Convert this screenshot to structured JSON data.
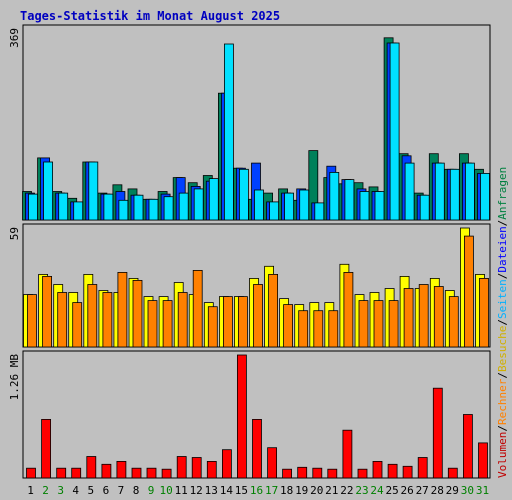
{
  "chart_data": {
    "type": "bar",
    "title": "Tages-Statistik im Monat August 2025",
    "categories": [
      "1",
      "2",
      "3",
      "4",
      "5",
      "6",
      "7",
      "8",
      "9",
      "10",
      "11",
      "12",
      "13",
      "14",
      "15",
      "16",
      "17",
      "18",
      "19",
      "20",
      "21",
      "22",
      "23",
      "24",
      "25",
      "26",
      "27",
      "28",
      "29",
      "30",
      "31"
    ],
    "weekend_days": [
      "2",
      "3",
      "9",
      "10",
      "16",
      "17",
      "23",
      "24",
      "30",
      "31"
    ],
    "panels": [
      {
        "id": "top",
        "ymax_label": "369",
        "ymax": 369,
        "series": [
          {
            "name": "Anfragen",
            "color": "#00805a",
            "values": [
              55,
              120,
              55,
              42,
              112,
              52,
              68,
              60,
              40,
              55,
              82,
              72,
              86,
              245,
              100,
              40,
              52,
              60,
              38,
              134,
              82,
              70,
              72,
              64,
              352,
              128,
              52,
              128,
              98,
              128,
              98
            ]
          },
          {
            "name": "Dateien",
            "color": "#0040ff",
            "values": [
              52,
              120,
              52,
              35,
              112,
              50,
              55,
              48,
              40,
              50,
              82,
              65,
              75,
              245,
              100,
              110,
              35,
              52,
              60,
              33,
              104,
              78,
              60,
              55,
              342,
              124,
              48,
              110,
              98,
              110,
              90
            ]
          },
          {
            "name": "Seiten",
            "color": "#00e1ff",
            "values": [
              50,
              112,
              52,
              35,
              112,
              50,
              38,
              48,
              40,
              45,
              52,
              60,
              80,
              340,
              98,
              58,
              35,
              52,
              58,
              33,
              92,
              78,
              55,
              55,
              342,
              110,
              48,
              110,
              98,
              110,
              90
            ]
          }
        ]
      },
      {
        "id": "mid",
        "ymax_label": "59",
        "ymax": 59,
        "series": [
          {
            "name": "Besuche",
            "color": "#ffff00",
            "values": [
              26,
              36,
              31,
              27,
              36,
              28,
              27,
              34,
              25,
              25,
              32,
              26,
              22,
              25,
              25,
              34,
              40,
              24,
              21,
              22,
              22,
              41,
              26,
              27,
              29,
              35,
              29,
              34,
              28,
              59,
              36
            ]
          },
          {
            "name": "Rechner",
            "color": "#ff8000",
            "values": [
              26,
              35,
              27,
              22,
              31,
              27,
              37,
              33,
              23,
              23,
              27,
              38,
              20,
              25,
              25,
              31,
              36,
              21,
              18,
              18,
              18,
              37,
              23,
              23,
              23,
              29,
              31,
              30,
              25,
              55,
              34
            ]
          }
        ]
      },
      {
        "id": "bot",
        "ymax_label": "1.26 MB",
        "ymax": 1.26,
        "series": [
          {
            "name": "Volumen",
            "color": "#ff0000",
            "values": [
              0.1,
              0.6,
              0.1,
              0.1,
              0.22,
              0.14,
              0.17,
              0.1,
              0.1,
              0.09,
              0.22,
              0.21,
              0.17,
              0.29,
              1.26,
              0.6,
              0.31,
              0.09,
              0.11,
              0.1,
              0.09,
              0.49,
              0.09,
              0.17,
              0.14,
              0.12,
              0.21,
              0.92,
              0.1,
              0.65,
              0.36
            ]
          }
        ]
      }
    ],
    "legend": [
      {
        "label": "Volumen",
        "color": "#c00000"
      },
      {
        "label": "Rechner",
        "color": "#ff8000"
      },
      {
        "label": "Besuche",
        "color": "#d0b000"
      },
      {
        "label": "Seiten",
        "color": "#00b0ff"
      },
      {
        "label": "Dateien",
        "color": "#0000ff"
      },
      {
        "label": "Anfragen",
        "color": "#008040"
      }
    ],
    "legend_separator": "/"
  }
}
